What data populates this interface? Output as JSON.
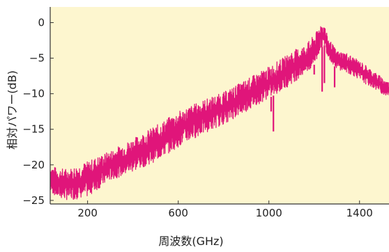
{
  "colors": {
    "plot_background": "#fdf6cf",
    "line": "#e0157a",
    "axis": "#333333",
    "text": "#222222"
  },
  "chart_data": {
    "type": "line",
    "title": "",
    "xlabel": "周波数(GHz)",
    "ylabel": "相対パワー(dB)",
    "xlim": [
      35,
      1530
    ],
    "ylim": [
      -25.5,
      2.2
    ],
    "xticks": [
      200,
      600,
      1000,
      1400
    ],
    "yticks": [
      0,
      -5,
      -10,
      -15,
      -20,
      -25
    ],
    "xtick_labels": [
      "200",
      "600",
      "1000",
      "1400"
    ],
    "ytick_labels": [
      "0",
      "−5",
      "−10",
      "−15",
      "−20",
      "−25"
    ],
    "grid": false,
    "legend": "none",
    "series": [
      {
        "name": "",
        "envelope": {
          "x": [
            35,
            70,
            120,
            200,
            300,
            400,
            500,
            600,
            700,
            800,
            900,
            1000,
            1060,
            1100,
            1150,
            1180,
            1210,
            1230,
            1245,
            1260,
            1280,
            1300,
            1340,
            1380,
            1420,
            1460,
            1500,
            1530
          ],
          "upper": [
            -20.0,
            -20.5,
            -20.5,
            -19.5,
            -18.0,
            -16.3,
            -14.5,
            -12.5,
            -11.0,
            -9.8,
            -8.0,
            -6.2,
            -5.0,
            -4.0,
            -3.3,
            -2.5,
            -1.3,
            0.0,
            -0.3,
            -2.0,
            -3.0,
            -4.0,
            -4.2,
            -5.0,
            -5.8,
            -6.8,
            -7.7,
            -8.4
          ],
          "lower": [
            -23.8,
            -24.7,
            -25.0,
            -24.5,
            -22.2,
            -21.0,
            -19.5,
            -17.5,
            -15.8,
            -14.3,
            -12.5,
            -10.6,
            -9.6,
            -8.6,
            -7.5,
            -6.8,
            -5.5,
            -3.5,
            -3.2,
            -4.8,
            -5.8,
            -6.5,
            -7.0,
            -7.6,
            -8.5,
            -9.2,
            -10.0,
            -10.5
          ]
        },
        "dips": [
          {
            "x": 1010,
            "y": -12.5
          },
          {
            "x": 1020,
            "y": -15.3
          },
          {
            "x": 1200,
            "y": -7.3
          },
          {
            "x": 1235,
            "y": -9.7
          },
          {
            "x": 1245,
            "y": -8.5
          },
          {
            "x": 1290,
            "y": -9.1
          }
        ]
      }
    ]
  }
}
